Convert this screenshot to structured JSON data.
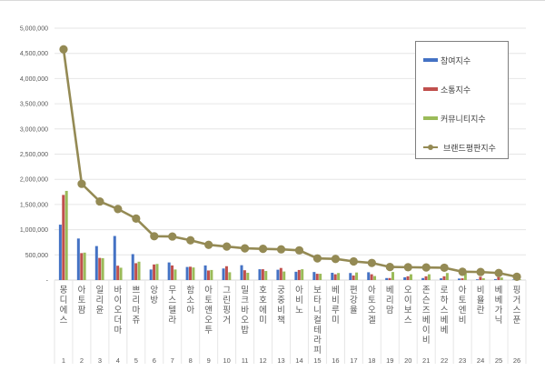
{
  "chart_data": {
    "type": "bar",
    "title": "",
    "xlabel": "",
    "ylabel": "",
    "ylim": [
      0,
      5000000
    ],
    "yticks": [
      "-",
      "500,000",
      "1,000,000",
      "1,500,000",
      "2,000,000",
      "2,500,000",
      "3,000,000",
      "3,500,000",
      "4,000,000",
      "4,500,000",
      "5,000,000"
    ],
    "grid": true,
    "legend_position": "right-inside",
    "categories": [
      "몽디에스",
      "아토팜",
      "일리윤",
      "바이오더마",
      "쁘리마쥬",
      "앙방",
      "무스텔라",
      "함소아",
      "아토앤오투",
      "그린핑거",
      "밀크바오밥",
      "호호에미",
      "궁중비책",
      "아비노",
      "보타니컬테라피",
      "베비루미",
      "편강율",
      "아토오겔",
      "베리맘",
      "오이보스",
      "존슨즈베이비",
      "로하스베베",
      "아토엔비",
      "비욜란",
      "베베가닉",
      "핑거스푼"
    ],
    "ranks": [
      "1",
      "2",
      "3",
      "4",
      "5",
      "6",
      "7",
      "8",
      "9",
      "10",
      "11",
      "12",
      "13",
      "14",
      "15",
      "16",
      "17",
      "18",
      "19",
      "20",
      "21",
      "22",
      "23",
      "24",
      "25",
      "26"
    ],
    "series": [
      {
        "name": "참여지수",
        "type": "bar",
        "color": "#4472c4",
        "values": [
          1100000,
          825000,
          675000,
          875000,
          515000,
          210000,
          350000,
          260000,
          290000,
          230000,
          295000,
          215000,
          205000,
          165000,
          160000,
          145000,
          140000,
          155000,
          40000,
          55000,
          40000,
          35000,
          30000,
          15000,
          20000,
          10000
        ]
      },
      {
        "name": "소통지수",
        "type": "bar",
        "color": "#c0504d",
        "values": [
          1690000,
          535000,
          440000,
          285000,
          335000,
          310000,
          290000,
          265000,
          190000,
          275000,
          195000,
          215000,
          240000,
          200000,
          125000,
          115000,
          90000,
          115000,
          40000,
          75000,
          75000,
          75000,
          35000,
          65000,
          60000,
          20000
        ]
      },
      {
        "name": "커뮤니티지수",
        "type": "bar",
        "color": "#9bbb59",
        "values": [
          1770000,
          545000,
          435000,
          245000,
          365000,
          320000,
          210000,
          250000,
          200000,
          155000,
          145000,
          180000,
          170000,
          215000,
          125000,
          140000,
          150000,
          80000,
          160000,
          115000,
          115000,
          140000,
          140000,
          35000,
          50000,
          15000
        ]
      },
      {
        "name": "브랜드평판지수",
        "type": "line",
        "color": "#948a54",
        "values": [
          4580000,
          1910000,
          1560000,
          1410000,
          1220000,
          870000,
          865000,
          790000,
          700000,
          665000,
          630000,
          620000,
          610000,
          590000,
          430000,
          420000,
          370000,
          340000,
          260000,
          255000,
          250000,
          245000,
          165000,
          160000,
          140000,
          65000
        ]
      }
    ]
  },
  "legend": {
    "items": [
      {
        "label": "참여지수",
        "color": "#4472c4"
      },
      {
        "label": "소통지수",
        "color": "#c0504d"
      },
      {
        "label": "커뮤니티지수",
        "color": "#9bbb59"
      },
      {
        "label": "브랜드평판지수",
        "color": "#948a54"
      }
    ]
  }
}
